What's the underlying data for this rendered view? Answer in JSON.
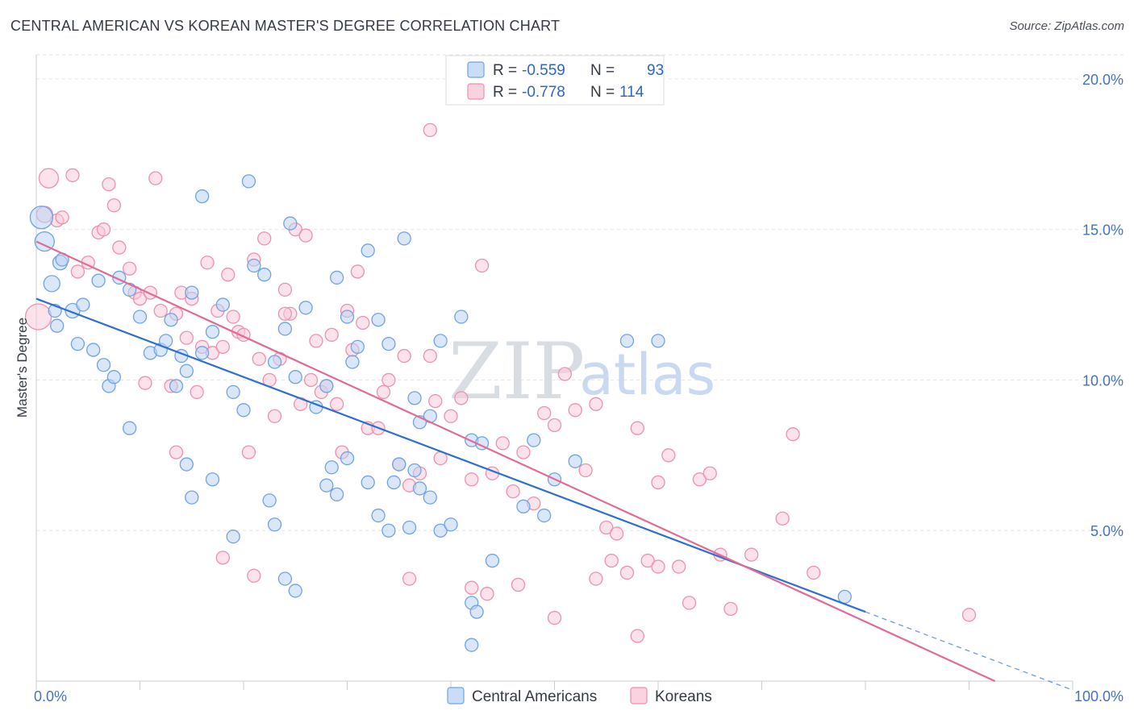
{
  "title": "CENTRAL AMERICAN VS KOREAN MASTER'S DEGREE CORRELATION CHART",
  "source": "Source: ZipAtlas.com",
  "watermark": {
    "part1": "ZIP",
    "part2": "atlas"
  },
  "chart_data": {
    "type": "scatter",
    "title": "CENTRAL AMERICAN VS KOREAN MASTER'S DEGREE CORRELATION CHART",
    "xlabel": "",
    "ylabel": "Master's Degree",
    "xlim": [
      0,
      100
    ],
    "ylim": [
      0,
      20.8
    ],
    "x_tick_labels": [
      "0.0%",
      "100.0%"
    ],
    "y_ticks": [
      5,
      10,
      15,
      20
    ],
    "y_tick_labels": [
      "5.0%",
      "10.0%",
      "15.0%",
      "20.0%"
    ],
    "grid": true,
    "legend_placement": "top-center",
    "legend": {
      "rows": [
        {
          "r_label": "R = ",
          "r_value": "-0.559",
          "n_label": "N = ",
          "n_value": "93",
          "color": "#9dc3f0"
        },
        {
          "r_label": "R = ",
          "r_value": "-0.778",
          "n_label": "N = ",
          "n_value": "114",
          "color": "#f6b8cc"
        }
      ]
    },
    "bottom_legend": [
      "Central Americans",
      "Koreans"
    ],
    "series": [
      {
        "name": "Central Americans",
        "color": "#6fa3e6",
        "fill": "#b9d4f4",
        "trend_color": "#2f6fd0",
        "trend": {
          "x0": 0,
          "y0": 12.7,
          "x1": 80,
          "y1": 2.3,
          "dash_to_x": 100,
          "dash_to_y": -0.3
        },
        "points": [
          [
            0.5,
            15.4,
            14
          ],
          [
            0.8,
            14.6,
            12
          ],
          [
            1.5,
            13.2,
            10
          ],
          [
            3.5,
            12.3,
            9
          ],
          [
            2,
            11.8,
            8
          ],
          [
            4,
            11.2,
            8
          ],
          [
            1.8,
            12.3,
            8
          ],
          [
            2.3,
            13.9,
            9
          ],
          [
            2.5,
            14,
            8
          ],
          [
            4.5,
            12.5,
            8
          ],
          [
            8,
            13.4,
            8
          ],
          [
            9,
            13,
            8
          ],
          [
            6,
            13.3,
            8
          ],
          [
            5.5,
            11,
            8
          ],
          [
            6.5,
            10.5,
            8
          ],
          [
            7,
            9.8,
            8
          ],
          [
            7.5,
            10.1,
            8
          ],
          [
            10,
            12.1,
            8
          ],
          [
            11,
            10.9,
            8
          ],
          [
            12,
            11,
            8
          ],
          [
            12.5,
            11.3,
            8
          ],
          [
            13,
            12,
            8
          ],
          [
            13.5,
            9.8,
            8
          ],
          [
            14,
            10.8,
            8
          ],
          [
            14.5,
            10.3,
            8
          ],
          [
            15,
            12.9,
            8
          ],
          [
            16,
            10.9,
            8
          ],
          [
            17,
            11.6,
            8
          ],
          [
            18,
            12.5,
            8
          ],
          [
            16,
            16.1,
            8
          ],
          [
            19,
            9.6,
            8
          ],
          [
            20,
            9,
            8
          ],
          [
            21,
            13.8,
            8
          ],
          [
            20.5,
            16.6,
            8
          ],
          [
            22,
            13.5,
            8
          ],
          [
            23,
            10.6,
            8
          ],
          [
            24,
            11.7,
            8
          ],
          [
            24.5,
            15.2,
            8
          ],
          [
            25,
            10.1,
            8
          ],
          [
            26,
            12.4,
            8
          ],
          [
            27,
            9.1,
            8
          ],
          [
            28,
            9.8,
            8
          ],
          [
            29,
            13.4,
            8
          ],
          [
            30,
            12.1,
            8
          ],
          [
            30.5,
            10.6,
            8
          ],
          [
            31,
            11.1,
            8
          ],
          [
            32,
            14.3,
            8
          ],
          [
            33,
            12,
            8
          ],
          [
            34,
            11.2,
            8
          ],
          [
            35.5,
            14.7,
            8
          ],
          [
            36.5,
            9.4,
            8
          ],
          [
            37,
            8.6,
            8
          ],
          [
            38,
            8.8,
            8
          ],
          [
            39,
            11.3,
            8
          ],
          [
            41,
            12.1,
            8
          ],
          [
            42,
            8,
            8
          ],
          [
            43,
            7.9,
            8
          ],
          [
            47,
            5.8,
            8
          ],
          [
            48,
            8,
            8
          ],
          [
            49,
            5.5,
            8
          ],
          [
            50,
            6.7,
            8
          ],
          [
            52,
            7.3,
            8
          ],
          [
            57,
            11.3,
            8
          ],
          [
            9,
            8.4,
            8
          ],
          [
            14.5,
            7.2,
            8
          ],
          [
            15,
            6.1,
            8
          ],
          [
            17,
            6.7,
            8
          ],
          [
            19,
            4.8,
            8
          ],
          [
            22.5,
            6,
            8
          ],
          [
            23,
            5.2,
            8
          ],
          [
            24,
            3.4,
            8
          ],
          [
            25,
            3,
            8
          ],
          [
            28,
            6.5,
            8
          ],
          [
            28.5,
            7.1,
            8
          ],
          [
            29,
            6.2,
            8
          ],
          [
            30,
            7.4,
            8
          ],
          [
            32,
            6.6,
            8
          ],
          [
            33,
            5.5,
            8
          ],
          [
            34,
            5,
            8
          ],
          [
            34.5,
            6.6,
            8
          ],
          [
            35,
            7.2,
            8
          ],
          [
            36,
            5.1,
            8
          ],
          [
            36.5,
            7,
            8
          ],
          [
            37,
            6.4,
            8
          ],
          [
            38,
            6.1,
            8
          ],
          [
            39,
            5,
            8
          ],
          [
            40,
            5.2,
            8
          ],
          [
            42,
            2.6,
            8
          ],
          [
            42.5,
            2.3,
            8
          ],
          [
            42,
            1.2,
            8
          ],
          [
            44,
            4,
            8
          ],
          [
            78,
            2.8,
            8
          ],
          [
            60,
            11.3,
            8
          ]
        ]
      },
      {
        "name": "Koreans",
        "color": "#ec91ae",
        "fill": "#f9cad9",
        "trend_color": "#e16b95",
        "trend": {
          "x0": 0,
          "y0": 14.6,
          "x1": 92.5,
          "y1": 0
        },
        "points": [
          [
            0.2,
            12.1,
            16
          ],
          [
            1.2,
            16.7,
            12
          ],
          [
            0.8,
            15.5,
            10
          ],
          [
            2,
            15.3,
            8
          ],
          [
            3.5,
            16.8,
            8
          ],
          [
            2.5,
            15.4,
            8
          ],
          [
            4,
            13.6,
            8
          ],
          [
            5,
            13.9,
            8
          ],
          [
            6,
            14.9,
            8
          ],
          [
            6.5,
            15,
            8
          ],
          [
            7,
            16.5,
            8
          ],
          [
            7.5,
            15.8,
            8
          ],
          [
            8,
            14.4,
            8
          ],
          [
            9,
            13.7,
            8
          ],
          [
            9.5,
            12.9,
            8
          ],
          [
            10,
            12.7,
            8
          ],
          [
            10.5,
            9.9,
            8
          ],
          [
            11,
            12.9,
            8
          ],
          [
            11.5,
            16.7,
            8
          ],
          [
            12,
            12.3,
            8
          ],
          [
            13,
            9.8,
            8
          ],
          [
            13.5,
            12.2,
            8
          ],
          [
            14,
            12.9,
            8
          ],
          [
            14.5,
            11.4,
            8
          ],
          [
            15,
            12.7,
            8
          ],
          [
            15.5,
            9.6,
            8
          ],
          [
            16,
            11.1,
            8
          ],
          [
            16.5,
            13.9,
            8
          ],
          [
            17,
            10.9,
            8
          ],
          [
            17.5,
            12.3,
            8
          ],
          [
            18,
            11.1,
            8
          ],
          [
            18.5,
            13.5,
            8
          ],
          [
            19,
            12.1,
            8
          ],
          [
            19.5,
            11.6,
            8
          ],
          [
            20,
            11.5,
            8
          ],
          [
            20.5,
            7.6,
            8
          ],
          [
            21,
            14,
            8
          ],
          [
            21.5,
            10.7,
            8
          ],
          [
            22,
            14.7,
            8
          ],
          [
            22.5,
            10,
            8
          ],
          [
            23,
            8.8,
            8
          ],
          [
            23.5,
            10.7,
            8
          ],
          [
            24,
            13,
            8
          ],
          [
            24.5,
            12.2,
            8
          ],
          [
            25,
            15,
            8
          ],
          [
            25.5,
            9.2,
            8
          ],
          [
            26,
            14.8,
            8
          ],
          [
            26.5,
            10,
            8
          ],
          [
            27,
            11.3,
            8
          ],
          [
            27.5,
            9.6,
            8
          ],
          [
            28,
            9.8,
            8
          ],
          [
            28.5,
            11.5,
            8
          ],
          [
            29,
            9.2,
            8
          ],
          [
            29.5,
            7.6,
            8
          ],
          [
            30,
            12.3,
            8
          ],
          [
            30.5,
            11,
            8
          ],
          [
            31,
            13.6,
            8
          ],
          [
            31.5,
            11.9,
            8
          ],
          [
            32,
            8.4,
            8
          ],
          [
            33,
            8.4,
            8
          ],
          [
            33.5,
            9.6,
            8
          ],
          [
            34,
            10,
            8
          ],
          [
            35,
            7.2,
            8
          ],
          [
            35.5,
            10.8,
            8
          ],
          [
            36,
            6.5,
            8
          ],
          [
            37,
            6.9,
            8
          ],
          [
            38,
            10.8,
            8
          ],
          [
            38.5,
            9.3,
            8
          ],
          [
            39,
            7.4,
            8
          ],
          [
            40,
            8.8,
            8
          ],
          [
            41,
            9.4,
            8
          ],
          [
            42,
            6.7,
            8
          ],
          [
            43,
            13.8,
            8
          ],
          [
            44,
            6.9,
            8
          ],
          [
            45,
            7.9,
            8
          ],
          [
            46,
            6.3,
            8
          ],
          [
            47,
            7.6,
            8
          ],
          [
            48,
            5.9,
            8
          ],
          [
            49,
            8.9,
            8
          ],
          [
            50,
            8.5,
            8
          ],
          [
            51,
            10.2,
            8
          ],
          [
            52,
            9,
            8
          ],
          [
            53,
            7,
            8
          ],
          [
            54,
            9.2,
            8
          ],
          [
            55,
            5.1,
            8
          ],
          [
            56,
            4.9,
            8
          ],
          [
            57,
            3.6,
            8
          ],
          [
            58,
            8.4,
            8
          ],
          [
            59,
            4,
            8
          ],
          [
            60,
            6.6,
            8
          ],
          [
            61,
            7.5,
            8
          ],
          [
            62,
            3.8,
            8
          ],
          [
            63,
            2.6,
            8
          ],
          [
            64,
            6.7,
            8
          ],
          [
            65,
            6.9,
            8
          ],
          [
            66,
            4.2,
            8
          ],
          [
            67,
            2.4,
            8
          ],
          [
            69,
            4.2,
            8
          ],
          [
            72,
            5.4,
            8
          ],
          [
            73,
            8.2,
            8
          ],
          [
            75,
            3.6,
            8
          ],
          [
            90,
            2.2,
            8
          ],
          [
            38,
            18.3,
            8
          ],
          [
            13.5,
            7.6,
            8
          ],
          [
            21,
            3.5,
            8
          ],
          [
            24,
            12.2,
            8
          ],
          [
            18,
            4.1,
            8
          ],
          [
            36,
            3.4,
            8
          ],
          [
            42,
            3.1,
            8
          ],
          [
            50,
            2.1,
            8
          ],
          [
            54,
            3.4,
            8
          ],
          [
            58,
            1.5,
            8
          ],
          [
            60,
            3.8,
            8
          ],
          [
            43.5,
            2.9,
            8
          ],
          [
            46.5,
            3.2,
            8
          ],
          [
            55.5,
            4,
            8
          ]
        ]
      }
    ]
  }
}
